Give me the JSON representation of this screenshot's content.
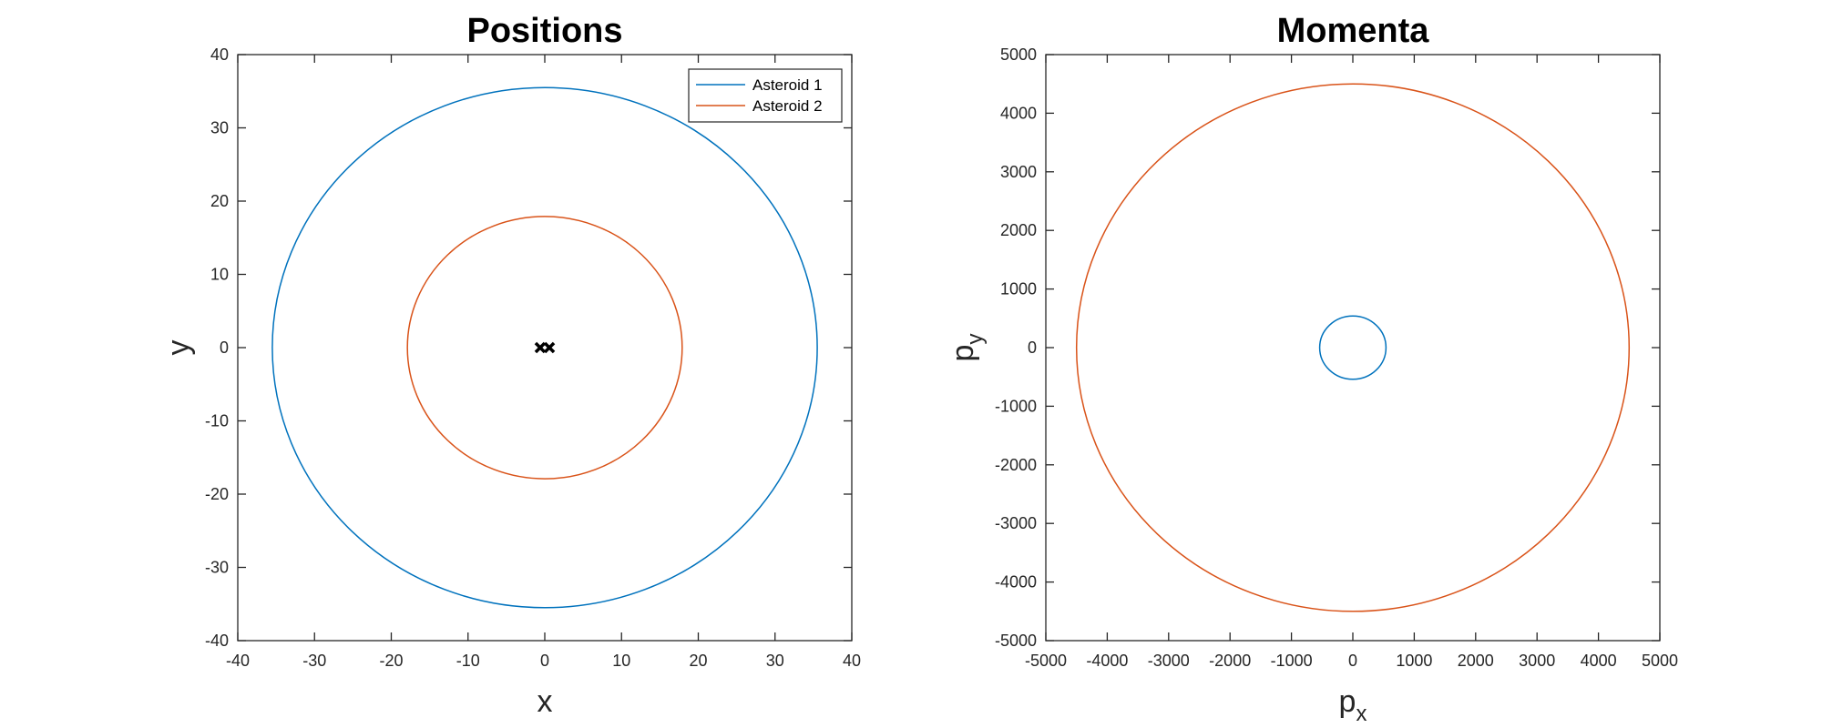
{
  "chart_data": [
    {
      "type": "line",
      "title": "Positions",
      "xlabel": "x",
      "ylabel": "y",
      "xlim": [
        -40,
        40
      ],
      "ylim": [
        -40,
        40
      ],
      "xticks": [
        -40,
        -30,
        -20,
        -10,
        0,
        10,
        20,
        30,
        40
      ],
      "yticks": [
        -40,
        -30,
        -20,
        -10,
        0,
        10,
        20,
        30,
        40
      ],
      "grid": false,
      "legend": "top-right",
      "series": [
        {
          "name": "Asteroid 1",
          "shape": "circle",
          "center": [
            0,
            0
          ],
          "radius": 35.5,
          "color": "#0072BD"
        },
        {
          "name": "Asteroid 2",
          "shape": "circle",
          "center": [
            0,
            0
          ],
          "radius": 17.9,
          "color": "#D95319"
        }
      ],
      "markers": {
        "symbol": "x",
        "color": "#000000",
        "x": [
          -0.6,
          0.6
        ],
        "y": [
          0,
          0
        ]
      }
    },
    {
      "type": "line",
      "title": "Momenta",
      "xlabel": "p",
      "xlabel_sub": "x",
      "ylabel": "p",
      "ylabel_sub": "y",
      "xlim": [
        -5000,
        5000
      ],
      "ylim": [
        -5000,
        5000
      ],
      "xticks": [
        -5000,
        -4000,
        -3000,
        -2000,
        -1000,
        0,
        1000,
        2000,
        3000,
        4000,
        5000
      ],
      "yticks": [
        -5000,
        -4000,
        -3000,
        -2000,
        -1000,
        0,
        1000,
        2000,
        3000,
        4000,
        5000
      ],
      "grid": false,
      "series": [
        {
          "shape": "circle",
          "center": [
            0,
            0
          ],
          "radius": 540,
          "color": "#0072BD"
        },
        {
          "shape": "circle",
          "center": [
            0,
            0
          ],
          "radius": 4500,
          "color": "#D95319"
        }
      ]
    }
  ]
}
